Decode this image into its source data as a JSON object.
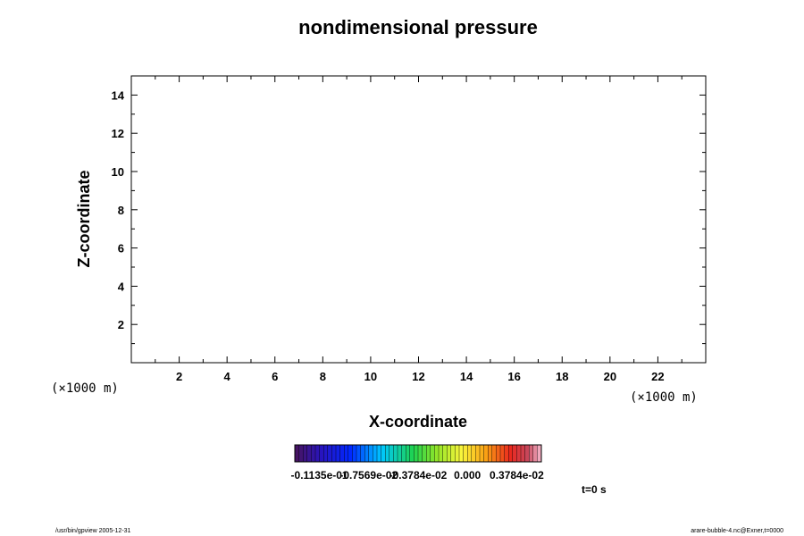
{
  "chart_data": {
    "type": "heatmap",
    "title": "nondimensional pressure",
    "xlabel": "X-coordinate",
    "ylabel": "Z-coordinate",
    "x_unit": "(×1000 m)",
    "y_unit": "(×1000 m)",
    "xlim": [
      0,
      24
    ],
    "ylim": [
      0,
      15
    ],
    "x_ticks": [
      2,
      4,
      6,
      8,
      10,
      12,
      14,
      16,
      18,
      20,
      22
    ],
    "y_ticks": [
      2,
      4,
      6,
      8,
      10,
      12,
      14
    ],
    "x_minor_step": 1,
    "y_minor_step": 1,
    "grid": false,
    "field": "empty",
    "colorbar": {
      "labels": [
        "-0.1135e-01",
        "-0.7569e-02",
        "-0.3784e-02",
        "0.000",
        "0.3784e-02"
      ],
      "min": -0.01324,
      "max": 0.005676,
      "n_colors": 60
    },
    "time_label": "t=0 s"
  },
  "footer": {
    "left": "/usr/bin/gpview 2005-12-31",
    "right": "arare-bubble-4.nc@Exner,t=0000"
  }
}
